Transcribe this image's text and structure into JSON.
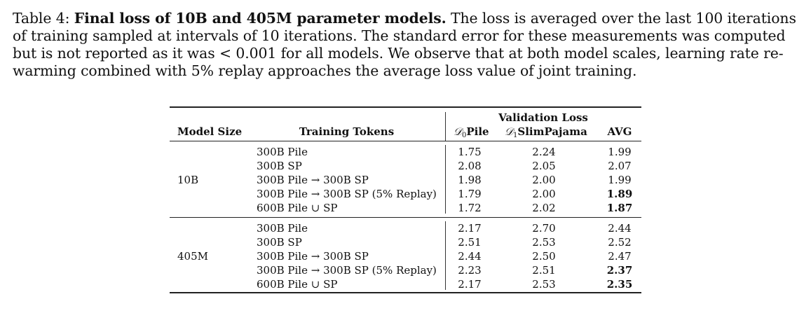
{
  "caption": {
    "label": "Table 4:",
    "title": "Final loss of 10B and 405M parameter models.",
    "body": "The loss is averaged over the last 100 iterations of training sampled at intervals of 10 iterations. The standard error for these measurements was computed but is not reported as it was < 0.001 for all models. We observe that at both model scales, learning rate re-warming combined with 5% replay approaches the average loss value of joint training."
  },
  "table": {
    "group_header": "Validation Loss",
    "headers": {
      "model_size": "Model Size",
      "training_tokens": "Training Tokens",
      "d0_prefix": "𝒟",
      "d0_sub": "0",
      "d0_name": "Pile",
      "d1_prefix": "𝒟",
      "d1_sub": "1",
      "d1_name": "SlimPajama",
      "avg": "AVG"
    },
    "groups": [
      {
        "model_size": "10B",
        "rows": [
          {
            "tokens": "300B Pile",
            "d0": "1.75",
            "d1": "2.24",
            "avg": "1.99",
            "avg_bold": false
          },
          {
            "tokens": "300B SP",
            "d0": "2.08",
            "d1": "2.05",
            "avg": "2.07",
            "avg_bold": false
          },
          {
            "tokens": "300B Pile → 300B SP",
            "d0": "1.98",
            "d1": "2.00",
            "avg": "1.99",
            "avg_bold": false
          },
          {
            "tokens": "300B Pile → 300B SP (5% Replay)",
            "d0": "1.79",
            "d1": "2.00",
            "avg": "1.89",
            "avg_bold": true
          },
          {
            "tokens": "600B Pile ∪ SP",
            "d0": "1.72",
            "d1": "2.02",
            "avg": "1.87",
            "avg_bold": true
          }
        ]
      },
      {
        "model_size": "405M",
        "rows": [
          {
            "tokens": "300B Pile",
            "d0": "2.17",
            "d1": "2.70",
            "avg": "2.44",
            "avg_bold": false
          },
          {
            "tokens": "300B SP",
            "d0": "2.51",
            "d1": "2.53",
            "avg": "2.52",
            "avg_bold": false
          },
          {
            "tokens": "300B Pile → 300B SP",
            "d0": "2.44",
            "d1": "2.50",
            "avg": "2.47",
            "avg_bold": false
          },
          {
            "tokens": "300B Pile → 300B SP (5% Replay)",
            "d0": "2.23",
            "d1": "2.51",
            "avg": "2.37",
            "avg_bold": true
          },
          {
            "tokens": "600B Pile ∪ SP",
            "d0": "2.17",
            "d1": "2.53",
            "avg": "2.35",
            "avg_bold": true
          }
        ]
      }
    ]
  }
}
